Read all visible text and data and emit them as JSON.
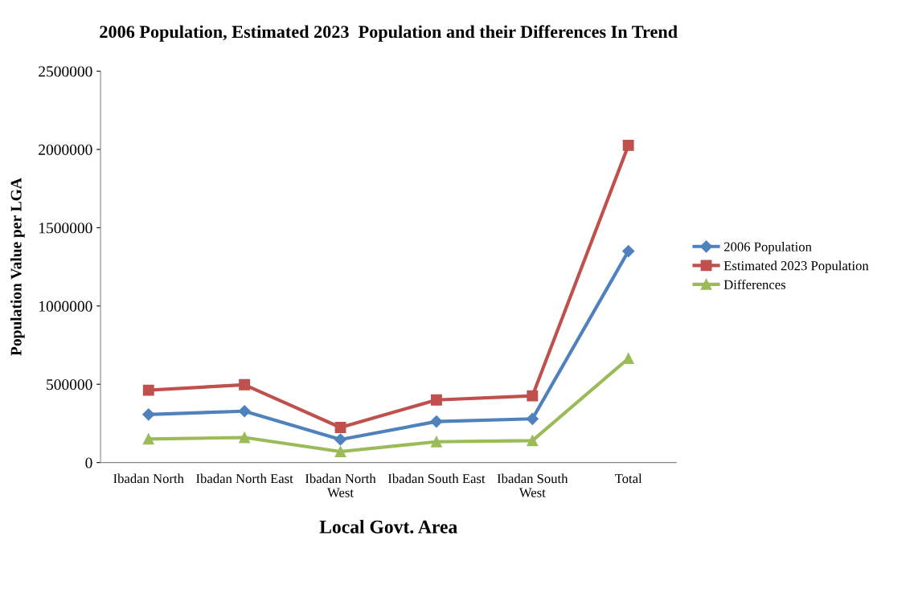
{
  "chart_data": {
    "type": "line",
    "title": "2006 Population, Estimated 2023  Population and their Differences In Trend",
    "xlabel": "Local Govt. Area",
    "ylabel": "Population Value per LGA",
    "categories": [
      "Ibadan North",
      "Ibadan North East",
      "Ibadan North\nWest",
      "Ibadan South East",
      "Ibadan South\nWest",
      "Total"
    ],
    "series": [
      {
        "name": "2006 Population",
        "color": "#4f81bd",
        "marker": "diamond",
        "values": [
          307000,
          328000,
          147000,
          262000,
          279000,
          1350000
        ]
      },
      {
        "name": "Estimated 2023 Population",
        "color": "#c0504d",
        "marker": "square",
        "values": [
          462000,
          497000,
          224000,
          400000,
          426000,
          2026000
        ]
      },
      {
        "name": "Differences",
        "color": "#9bbb59",
        "marker": "triangle",
        "values": [
          150000,
          160000,
          70000,
          133000,
          140000,
          665000
        ]
      }
    ],
    "ylim": [
      0,
      2500000
    ],
    "yticks": [
      0,
      500000,
      1000000,
      1500000,
      2000000,
      2500000
    ],
    "grid": false,
    "legend": "right"
  }
}
